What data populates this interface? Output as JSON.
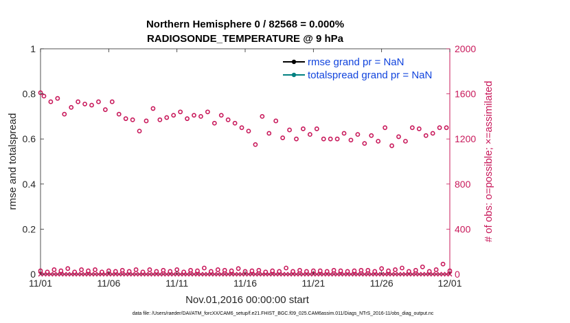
{
  "chart_data": {
    "type": "scatter",
    "title": "Northern Hemisphere 0 / 82568 = 0.000%",
    "subtitle": "RADIOSONDE_TEMPERATURE @ 9 hPa",
    "xlabel": "Nov.01,2016 00:00:00 start",
    "ylabel": "rmse and totalspread",
    "y2label": "# of obs: o=possible; ×=assimilated",
    "footnote": "data file: /Users/raeder/DAI/ATM_forcXX/CAM6_setup/f.e21.FHIST_BGC.f09_025.CAM6assim.011/Diags_NTrS_2016-11/obs_diag_output.nc",
    "xlim": [
      0,
      30
    ],
    "ylim": [
      0,
      1
    ],
    "y2lim": [
      0,
      2000
    ],
    "x_ticks": [
      {
        "value": 0,
        "label": "11/01"
      },
      {
        "value": 5,
        "label": "11/06"
      },
      {
        "value": 10,
        "label": "11/11"
      },
      {
        "value": 15,
        "label": "11/16"
      },
      {
        "value": 20,
        "label": "11/21"
      },
      {
        "value": 25,
        "label": "11/26"
      },
      {
        "value": 30,
        "label": "12/01"
      }
    ],
    "y_ticks": [
      {
        "value": 0,
        "label": "0"
      },
      {
        "value": 0.2,
        "label": "0.2"
      },
      {
        "value": 0.4,
        "label": "0.4"
      },
      {
        "value": 0.6,
        "label": "0.6"
      },
      {
        "value": 0.8,
        "label": "0.8"
      },
      {
        "value": 1,
        "label": "1"
      }
    ],
    "y2_ticks": [
      {
        "value": 0,
        "label": "0"
      },
      {
        "value": 400,
        "label": "400"
      },
      {
        "value": 800,
        "label": "800"
      },
      {
        "value": 1200,
        "label": "1200"
      },
      {
        "value": 1600,
        "label": "1600"
      },
      {
        "value": 2000,
        "label": "2000"
      }
    ],
    "legend": {
      "placement": "top-right",
      "entries": [
        {
          "label": "rmse grand pr = NaN",
          "color": "#000000"
        },
        {
          "label": "totalspread grand pr = NaN",
          "color": "#008080"
        }
      ]
    },
    "colors": {
      "obs": "#c8185a",
      "axis": "#262626",
      "legend_text": "#1144dd"
    },
    "series": [
      {
        "name": "possible obs (high)",
        "marker": "o",
        "axis": "right",
        "x": [
          0,
          0.25,
          0.75,
          1.25,
          1.75,
          2.25,
          2.75,
          3.25,
          3.75,
          4.25,
          4.75,
          5.25,
          5.75,
          6.25,
          6.75,
          7.25,
          7.75,
          8.25,
          8.75,
          9.25,
          9.75,
          10.25,
          10.75,
          11.25,
          11.75,
          12.25,
          12.75,
          13.25,
          13.75,
          14.25,
          14.75,
          15.25,
          15.75,
          16.25,
          16.75,
          17.25,
          17.75,
          18.25,
          18.75,
          19.25,
          19.75,
          20.25,
          20.75,
          21.25,
          21.75,
          22.25,
          22.75,
          23.25,
          23.75,
          24.25,
          24.75,
          25.25,
          25.75,
          26.25,
          26.75,
          27.25,
          27.75,
          28.25,
          28.75,
          29.25,
          29.75
        ],
        "values": [
          1610,
          1580,
          1530,
          1560,
          1420,
          1480,
          1530,
          1510,
          1500,
          1530,
          1460,
          1530,
          1420,
          1380,
          1370,
          1270,
          1360,
          1470,
          1370,
          1390,
          1410,
          1440,
          1380,
          1410,
          1400,
          1440,
          1340,
          1410,
          1370,
          1340,
          1300,
          1270,
          1150,
          1400,
          1250,
          1360,
          1210,
          1280,
          1200,
          1290,
          1240,
          1290,
          1200,
          1200,
          1200,
          1250,
          1190,
          1240,
          1160,
          1230,
          1180,
          1300,
          1140,
          1220,
          1180,
          1300,
          1290,
          1230,
          1250,
          1300,
          1300
        ]
      },
      {
        "name": "possible obs (low)",
        "marker": "o",
        "axis": "right",
        "x": [
          0,
          0.5,
          1,
          1.5,
          2,
          2.5,
          3,
          3.5,
          4,
          4.5,
          5,
          5.5,
          6,
          6.5,
          7,
          7.5,
          8,
          8.5,
          9,
          9.5,
          10,
          10.5,
          11,
          11.5,
          12,
          12.5,
          13,
          13.5,
          14,
          14.5,
          15,
          15.5,
          16,
          16.5,
          17,
          17.5,
          18,
          18.5,
          19,
          19.5,
          20,
          20.5,
          21,
          21.5,
          22,
          22.5,
          23,
          23.5,
          24,
          24.5,
          25,
          25.5,
          26,
          26.5,
          27,
          27.5,
          28,
          28.5,
          29,
          29.5,
          30
        ],
        "values": [
          30,
          20,
          40,
          30,
          50,
          20,
          40,
          30,
          40,
          20,
          30,
          25,
          35,
          25,
          40,
          20,
          40,
          25,
          35,
          25,
          40,
          20,
          35,
          30,
          55,
          25,
          40,
          35,
          30,
          50,
          25,
          30,
          35,
          20,
          30,
          25,
          55,
          25,
          35,
          25,
          30,
          30,
          25,
          35,
          30,
          25,
          30,
          35,
          35,
          25,
          50,
          30,
          40,
          55,
          25,
          35,
          65,
          25,
          40,
          90,
          30
        ]
      },
      {
        "name": "assimilated obs",
        "marker": "x",
        "axis": "right",
        "values": [
          0
        ]
      },
      {
        "name": "rmse",
        "axis": "left",
        "values": []
      },
      {
        "name": "totalspread",
        "axis": "left",
        "values": []
      }
    ]
  }
}
